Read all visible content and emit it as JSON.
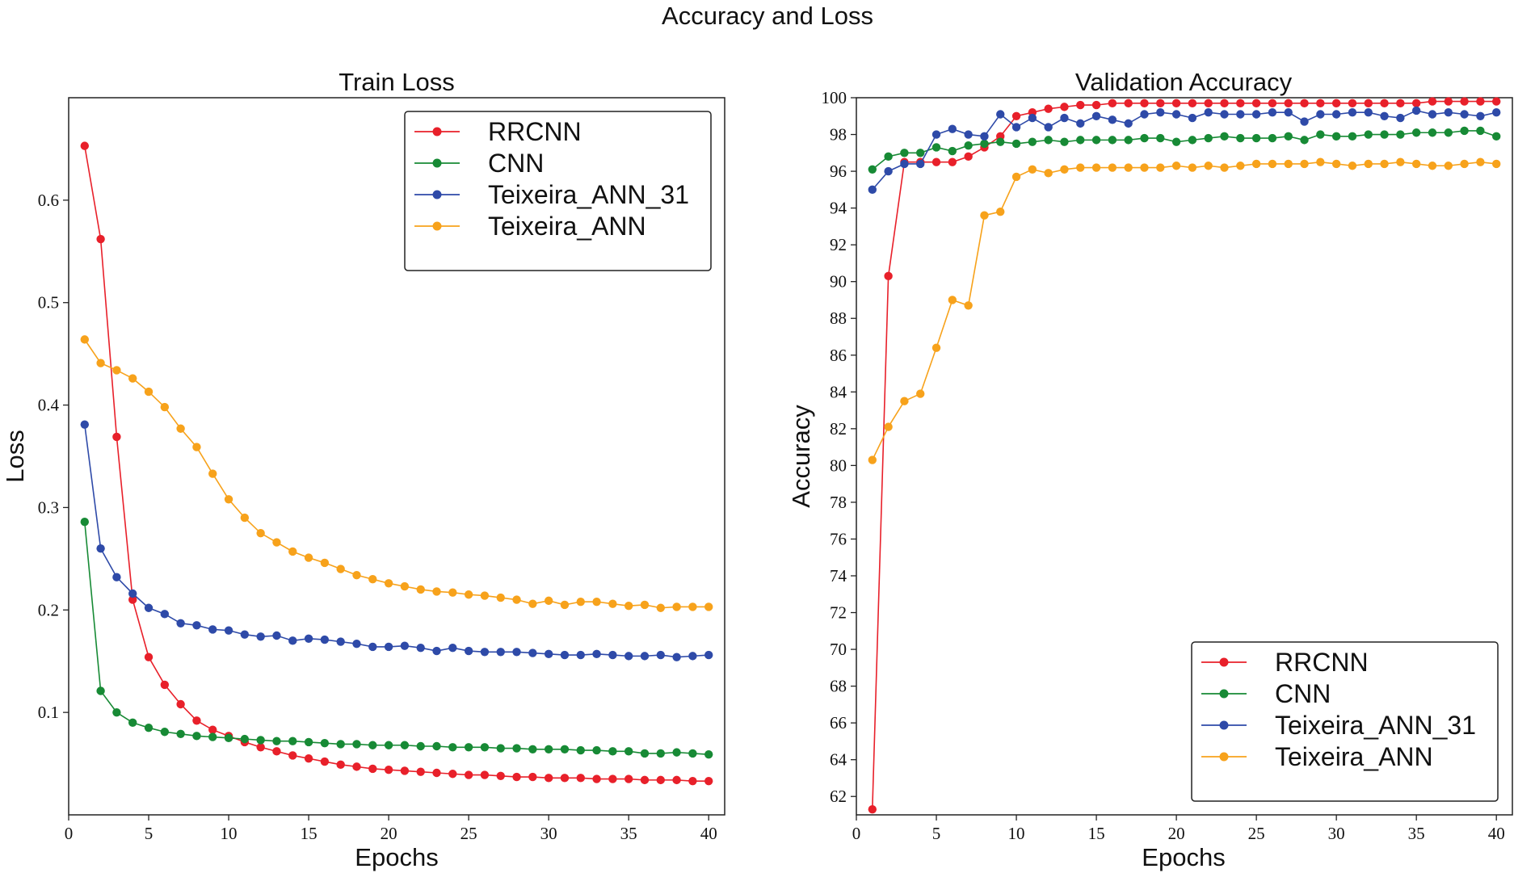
{
  "figure": {
    "suptitle": "Accuracy and Loss"
  },
  "chart_data": [
    {
      "type": "line",
      "title": "Train Loss",
      "xlabel": "Epochs",
      "ylabel": "Loss",
      "xlim": [
        0,
        41
      ],
      "ylim": [
        0.0,
        0.7
      ],
      "xticks": [
        "0",
        "5",
        "10",
        "15",
        "20",
        "25",
        "30",
        "35",
        "40"
      ],
      "yticks": [
        "0.1",
        "0.2",
        "0.3",
        "0.4",
        "0.5",
        "0.6"
      ],
      "legend_position": "top-right",
      "x": [
        1,
        2,
        3,
        4,
        5,
        6,
        7,
        8,
        9,
        10,
        11,
        12,
        13,
        14,
        15,
        16,
        17,
        18,
        19,
        20,
        21,
        22,
        23,
        24,
        25,
        26,
        27,
        28,
        29,
        30,
        31,
        32,
        33,
        34,
        35,
        36,
        37,
        38,
        39,
        40
      ],
      "series": [
        {
          "name": "RRCNN",
          "color": "#e8202a",
          "values": [
            0.653,
            0.562,
            0.369,
            0.21,
            0.154,
            0.127,
            0.108,
            0.092,
            0.083,
            0.077,
            0.071,
            0.066,
            0.062,
            0.058,
            0.055,
            0.052,
            0.049,
            0.047,
            0.045,
            0.044,
            0.043,
            0.042,
            0.041,
            0.04,
            0.039,
            0.039,
            0.038,
            0.037,
            0.037,
            0.036,
            0.036,
            0.036,
            0.035,
            0.035,
            0.035,
            0.034,
            0.034,
            0.034,
            0.033,
            0.033
          ]
        },
        {
          "name": "CNN",
          "color": "#178a35",
          "values": [
            0.286,
            0.121,
            0.1,
            0.09,
            0.085,
            0.081,
            0.079,
            0.077,
            0.076,
            0.075,
            0.074,
            0.073,
            0.072,
            0.072,
            0.071,
            0.07,
            0.069,
            0.069,
            0.068,
            0.068,
            0.068,
            0.067,
            0.067,
            0.066,
            0.066,
            0.066,
            0.065,
            0.065,
            0.064,
            0.064,
            0.064,
            0.063,
            0.063,
            0.062,
            0.062,
            0.06,
            0.06,
            0.061,
            0.06,
            0.059
          ]
        },
        {
          "name": "Teixeira_ANN_31",
          "color": "#2e4aa8",
          "values": [
            0.381,
            0.26,
            0.232,
            0.216,
            0.202,
            0.196,
            0.187,
            0.185,
            0.181,
            0.18,
            0.176,
            0.174,
            0.175,
            0.17,
            0.172,
            0.171,
            0.169,
            0.167,
            0.164,
            0.164,
            0.165,
            0.163,
            0.16,
            0.163,
            0.16,
            0.159,
            0.159,
            0.159,
            0.158,
            0.157,
            0.156,
            0.156,
            0.157,
            0.156,
            0.155,
            0.155,
            0.156,
            0.154,
            0.155,
            0.156
          ]
        },
        {
          "name": "Teixeira_ANN",
          "color": "#f7a21b",
          "values": [
            0.464,
            0.441,
            0.434,
            0.426,
            0.413,
            0.398,
            0.377,
            0.359,
            0.333,
            0.308,
            0.29,
            0.275,
            0.266,
            0.257,
            0.251,
            0.246,
            0.24,
            0.234,
            0.23,
            0.226,
            0.223,
            0.22,
            0.218,
            0.217,
            0.215,
            0.214,
            0.212,
            0.21,
            0.206,
            0.209,
            0.205,
            0.208,
            0.208,
            0.206,
            0.204,
            0.205,
            0.202,
            0.203,
            0.203,
            0.203
          ]
        }
      ]
    },
    {
      "type": "line",
      "title": "Validation Accuracy",
      "xlabel": "Epochs",
      "ylabel": "Accuracy",
      "xlim": [
        0,
        41
      ],
      "ylim": [
        61,
        100
      ],
      "xticks": [
        "0",
        "5",
        "10",
        "15",
        "20",
        "25",
        "30",
        "35",
        "40"
      ],
      "yticks": [
        "62",
        "64",
        "66",
        "68",
        "70",
        "72",
        "74",
        "76",
        "78",
        "80",
        "82",
        "84",
        "86",
        "88",
        "90",
        "92",
        "94",
        "96",
        "98",
        "100"
      ],
      "legend_position": "bottom-right",
      "x": [
        1,
        2,
        3,
        4,
        5,
        6,
        7,
        8,
        9,
        10,
        11,
        12,
        13,
        14,
        15,
        16,
        17,
        18,
        19,
        20,
        21,
        22,
        23,
        24,
        25,
        26,
        27,
        28,
        29,
        30,
        31,
        32,
        33,
        34,
        35,
        36,
        37,
        38,
        39,
        40
      ],
      "series": [
        {
          "name": "RRCNN",
          "color": "#e8202a",
          "values": [
            61.3,
            90.3,
            96.5,
            96.5,
            96.5,
            96.5,
            96.8,
            97.3,
            97.9,
            99.0,
            99.2,
            99.4,
            99.5,
            99.6,
            99.6,
            99.7,
            99.7,
            99.7,
            99.7,
            99.7,
            99.7,
            99.7,
            99.7,
            99.7,
            99.7,
            99.7,
            99.7,
            99.7,
            99.7,
            99.7,
            99.7,
            99.7,
            99.7,
            99.7,
            99.7,
            99.8,
            99.8,
            99.8,
            99.8,
            99.8
          ]
        },
        {
          "name": "CNN",
          "color": "#178a35",
          "values": [
            96.1,
            96.8,
            97.0,
            97.0,
            97.3,
            97.1,
            97.4,
            97.5,
            97.6,
            97.5,
            97.6,
            97.7,
            97.6,
            97.7,
            97.7,
            97.7,
            97.7,
            97.8,
            97.8,
            97.6,
            97.7,
            97.8,
            97.9,
            97.8,
            97.8,
            97.8,
            97.9,
            97.7,
            98.0,
            97.9,
            97.9,
            98.0,
            98.0,
            98.0,
            98.1,
            98.1,
            98.1,
            98.2,
            98.2,
            97.9
          ]
        },
        {
          "name": "Teixeira_ANN_31",
          "color": "#2e4aa8",
          "values": [
            95.0,
            96.0,
            96.4,
            96.4,
            98.0,
            98.3,
            98.0,
            97.9,
            99.1,
            98.4,
            98.9,
            98.4,
            98.9,
            98.6,
            99.0,
            98.8,
            98.6,
            99.1,
            99.2,
            99.1,
            98.9,
            99.2,
            99.1,
            99.1,
            99.1,
            99.2,
            99.2,
            98.7,
            99.1,
            99.1,
            99.2,
            99.2,
            99.0,
            98.9,
            99.3,
            99.1,
            99.2,
            99.1,
            99.0,
            99.2
          ]
        },
        {
          "name": "Teixeira_ANN",
          "color": "#f7a21b",
          "values": [
            80.3,
            82.1,
            83.5,
            83.9,
            86.4,
            89.0,
            88.7,
            93.6,
            93.8,
            95.7,
            96.1,
            95.9,
            96.1,
            96.2,
            96.2,
            96.2,
            96.2,
            96.2,
            96.2,
            96.3,
            96.2,
            96.3,
            96.2,
            96.3,
            96.4,
            96.4,
            96.4,
            96.4,
            96.5,
            96.4,
            96.3,
            96.4,
            96.4,
            96.5,
            96.4,
            96.3,
            96.3,
            96.4,
            96.5,
            96.4
          ]
        }
      ]
    }
  ]
}
